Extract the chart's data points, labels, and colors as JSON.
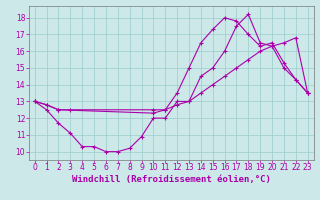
{
  "xlabel": "Windchill (Refroidissement éolien,°C)",
  "xlim": [
    -0.5,
    23.5
  ],
  "ylim": [
    9.5,
    18.7
  ],
  "xticks": [
    0,
    1,
    2,
    3,
    4,
    5,
    6,
    7,
    8,
    9,
    10,
    11,
    12,
    13,
    14,
    15,
    16,
    17,
    18,
    19,
    20,
    21,
    22,
    23
  ],
  "yticks": [
    10,
    11,
    12,
    13,
    14,
    15,
    16,
    17,
    18
  ],
  "bg_color": "#cce8e8",
  "line_color": "#aa00aa",
  "line1_x": [
    0,
    1,
    2,
    3,
    4,
    5,
    6,
    7,
    8,
    9,
    10,
    11,
    12,
    13,
    14,
    15,
    16,
    17,
    18,
    19,
    20,
    21,
    22,
    23
  ],
  "line1_y": [
    13.0,
    12.5,
    11.7,
    11.1,
    10.3,
    10.3,
    10.0,
    10.0,
    10.2,
    10.9,
    12.0,
    12.0,
    13.0,
    13.0,
    14.5,
    15.0,
    16.0,
    17.5,
    18.2,
    16.5,
    16.3,
    15.0,
    14.3,
    13.5
  ],
  "line2_x": [
    0,
    1,
    2,
    3,
    10,
    11,
    12,
    13,
    14,
    15,
    16,
    17,
    18,
    19,
    20,
    21,
    22,
    23
  ],
  "line2_y": [
    13.0,
    12.8,
    12.5,
    12.5,
    12.5,
    12.5,
    13.5,
    15.0,
    16.5,
    17.3,
    18.0,
    17.8,
    17.0,
    16.3,
    16.5,
    15.3,
    14.3,
    13.5
  ],
  "line3_x": [
    0,
    1,
    2,
    10,
    11,
    12,
    13,
    14,
    15,
    16,
    17,
    18,
    19,
    20,
    21,
    22,
    23
  ],
  "line3_y": [
    13.0,
    12.8,
    12.5,
    12.3,
    12.5,
    12.8,
    13.0,
    13.5,
    14.0,
    14.5,
    15.0,
    15.5,
    16.0,
    16.3,
    16.5,
    16.8,
    13.5
  ],
  "tick_fontsize": 5.5,
  "label_fontsize": 6.5,
  "grid_color": "#99cccc",
  "spine_color": "#777777"
}
